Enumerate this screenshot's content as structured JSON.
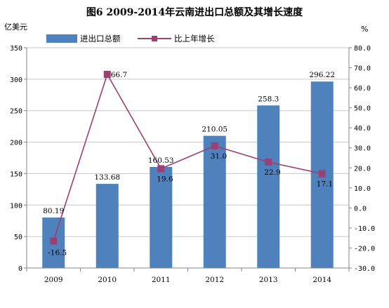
{
  "chart_data": {
    "type": "bar",
    "title": "图6    2009-2014年云南进出口总额及其增长速度",
    "ylabel_left": "亿美元",
    "ylabel_right": "%",
    "categories": [
      "2009",
      "2010",
      "2011",
      "2012",
      "2013",
      "2014"
    ],
    "y_left_ticks": [
      "350",
      "300",
      "250",
      "200",
      "150",
      "100",
      "50",
      "0"
    ],
    "y_right_ticks": [
      "80.0",
      "70.0",
      "60.0",
      "50.0",
      "40.0",
      "30.0",
      "20.0",
      "10.0",
      "0.0",
      "-10.0",
      "-20.0",
      "-30.0"
    ],
    "ylim_left": [
      0,
      350
    ],
    "ylim_right": [
      -30,
      80
    ],
    "series": [
      {
        "name": "进出口总额",
        "type": "bar",
        "axis": "left",
        "values": [
          80.19,
          133.68,
          160.53,
          210.05,
          258.3,
          296.22
        ],
        "labels": [
          "80.19",
          "133.68",
          "160.53",
          "210.05",
          "258.3",
          "296.22"
        ],
        "color": "#4f81bd"
      },
      {
        "name": "比上年增长",
        "type": "line",
        "axis": "right",
        "values": [
          -16.5,
          66.7,
          19.6,
          31.0,
          22.9,
          17.1
        ],
        "labels": [
          "-16.5",
          "66.7",
          "19.6",
          "31.0",
          "22.9",
          "17.1"
        ],
        "color": "#9b3f74",
        "marker": "square"
      }
    ],
    "legend_position": "top-left",
    "grid": true
  }
}
